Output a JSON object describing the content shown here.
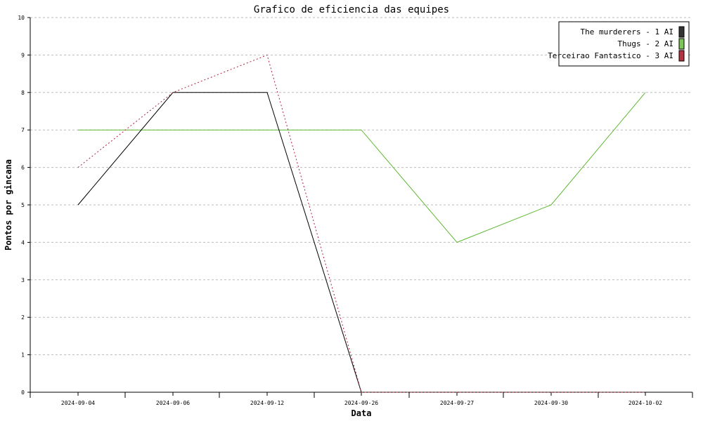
{
  "chart_data": {
    "type": "line",
    "title": "Grafico de eficiencia das equipes",
    "xlabel": "Data",
    "ylabel": "Pontos por gincana",
    "ylim": [
      0,
      10
    ],
    "yticks": [
      "0",
      "1",
      "2",
      "3",
      "4",
      "5",
      "6",
      "7",
      "8",
      "9",
      "10"
    ],
    "categories": [
      "2024-09-04",
      "2024-09-06",
      "2024-09-12",
      "2024-09-26",
      "2024-09-27",
      "2024-09-30",
      "2024-10-02"
    ],
    "grid": "horizontal dashed",
    "legend_position": "top-right",
    "series": [
      {
        "name": "The murderers - 1 AI",
        "color": "#000000",
        "dash": "solid",
        "swatch": "#333333",
        "values": [
          5,
          8,
          8,
          0,
          0,
          0,
          0
        ]
      },
      {
        "name": "Thugs - 2 AI",
        "color": "#5cb82e",
        "dash": "solid",
        "swatch": "#7cc655",
        "values": [
          7,
          7,
          7,
          7,
          4,
          5,
          8
        ]
      },
      {
        "name": "Terceirao Fantastico - 3 AI",
        "color": "#b0203a",
        "dash": "dotted",
        "swatch": "#b8333f",
        "values": [
          6,
          8,
          9,
          0,
          0,
          0,
          0
        ]
      }
    ]
  }
}
